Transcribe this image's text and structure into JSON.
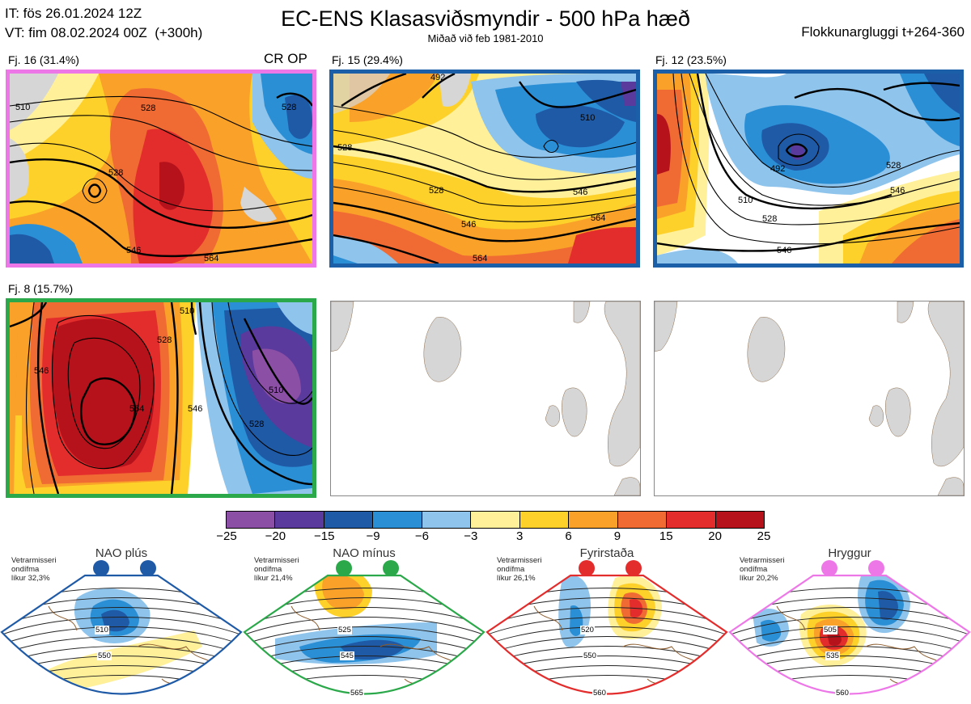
{
  "header": {
    "it_line": "IT: fös 26.01.2024 12Z",
    "vt_line": "VT: fim 08.02.2024 00Z  (+300h)",
    "title": "EC-ENS Klasasviðsmyndir - 500 hPa hæð",
    "subtitle": "Miðað við feb 1981-2010",
    "window": "Flokkunargluggi t+264-360"
  },
  "panels": [
    {
      "label": "Fj. 16 (31.4%)",
      "tag": "CR OP",
      "border_color": "#ee77e8",
      "contours": [
        "510",
        "528",
        "528",
        "528",
        "546",
        "564"
      ]
    },
    {
      "label": "Fj. 15 (29.4%)",
      "tag": "",
      "border_color": "#1b5fa8",
      "contours": [
        "492",
        "510",
        "528",
        "528",
        "546",
        "546",
        "564",
        "564"
      ]
    },
    {
      "label": "Fj. 12 (23.5%)",
      "tag": "",
      "border_color": "#1b5fa8",
      "contours": [
        "492",
        "510",
        "528",
        "528",
        "546",
        "546",
        "564"
      ]
    },
    {
      "label": "Fj. 8 (15.7%)",
      "tag": "",
      "border_color": "#2ba84a",
      "contours": [
        "510",
        "528",
        "546",
        "546",
        "564",
        "510",
        "528"
      ]
    }
  ],
  "colorbar": {
    "ticks": [
      "−25",
      "−20",
      "−15",
      "−9",
      "−6",
      "−3",
      "3",
      "6",
      "9",
      "15",
      "20",
      "25"
    ],
    "colors": [
      "#8b4fa6",
      "#5a3a9c",
      "#1f5aa7",
      "#2b8fd6",
      "#8fc4ec",
      "#ffffff",
      "#fff099",
      "#fed12a",
      "#f9a128",
      "#f06a34",
      "#e32c2c",
      "#b5121b"
    ]
  },
  "regimes": [
    {
      "name": "NAO plús",
      "stats": [
        "Vetrarmisseri",
        "ondífma",
        "líkur 32,3%"
      ],
      "color": "#1f5aa7",
      "contours": [
        "510",
        "550"
      ]
    },
    {
      "name": "NAO mínus",
      "stats": [
        "Vetrarmisseri",
        "ondífma",
        "líkur 21,4%"
      ],
      "color": "#2ba84a",
      "contours": [
        "525",
        "545",
        "565"
      ]
    },
    {
      "name": "Fyrirstaða",
      "stats": [
        "Vetrarmisseri",
        "ondífma",
        "líkur 26,1%"
      ],
      "color": "#e32c2c",
      "contours": [
        "520",
        "550",
        "560"
      ]
    },
    {
      "name": "Hryggur",
      "stats": [
        "Vetrarmisseri",
        "ondífma",
        "líkur 20,2%"
      ],
      "color": "#ee77e8",
      "contours": [
        "505",
        "535",
        "560"
      ]
    }
  ],
  "chart_data": {
    "type": "heatmap",
    "title": "EC-ENS Klasasviðsmyndir - 500 hPa hæð",
    "subtitle": "Miðað við feb 1981-2010",
    "clusters": [
      {
        "name": "Fj. 16",
        "probability_pct": 31.4,
        "contour_labels": [
          510,
          528,
          546,
          564
        ]
      },
      {
        "name": "Fj. 15",
        "probability_pct": 29.4,
        "contour_labels": [
          492,
          510,
          528,
          546,
          564
        ]
      },
      {
        "name": "Fj. 12",
        "probability_pct": 23.5,
        "contour_labels": [
          492,
          510,
          528,
          546,
          564
        ]
      },
      {
        "name": "Fj. 8",
        "probability_pct": 15.7,
        "contour_labels": [
          510,
          528,
          546,
          564
        ]
      }
    ],
    "colorbar_levels": [
      -25,
      -20,
      -15,
      -9,
      -6,
      -3,
      3,
      6,
      9,
      15,
      20,
      25
    ],
    "regimes": [
      {
        "name": "NAO plús",
        "probability_pct": 32.3
      },
      {
        "name": "NAO mínus",
        "probability_pct": 21.4
      },
      {
        "name": "Fyrirstaða",
        "probability_pct": 26.1
      },
      {
        "name": "Hryggur",
        "probability_pct": 20.2
      }
    ]
  }
}
